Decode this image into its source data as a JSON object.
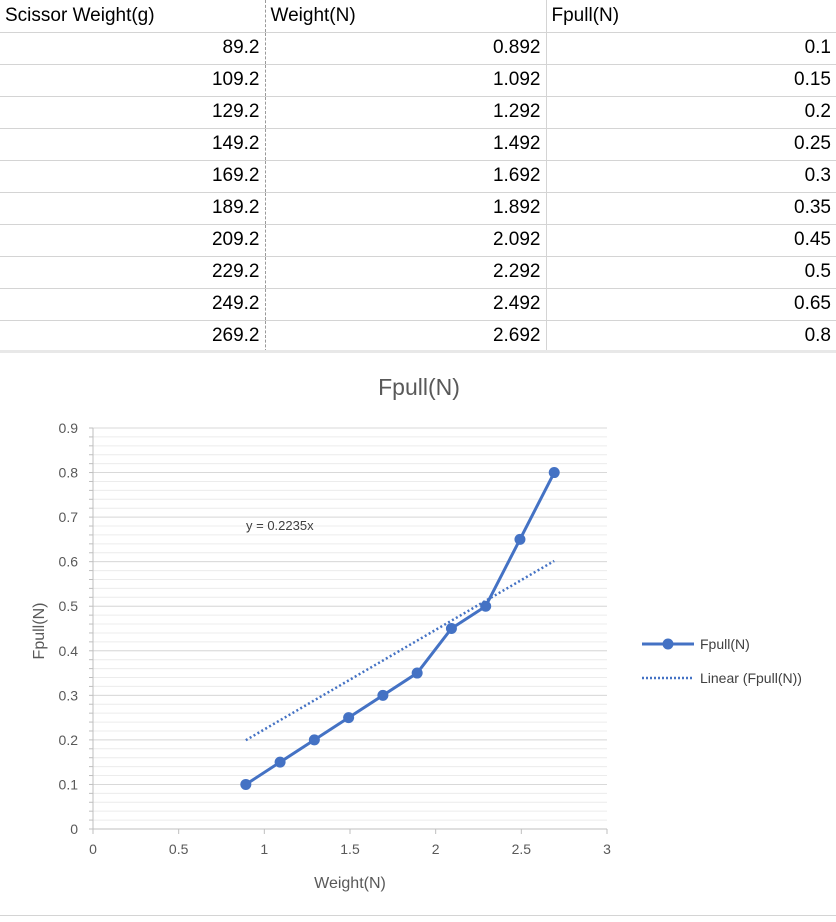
{
  "table": {
    "headers": [
      "Scissor Weight(g)",
      "Weight(N)",
      "Fpull(N)"
    ],
    "rows": [
      [
        "89.2",
        "0.892",
        "0.1"
      ],
      [
        "109.2",
        "1.092",
        "0.15"
      ],
      [
        "129.2",
        "1.292",
        "0.2"
      ],
      [
        "149.2",
        "1.492",
        "0.25"
      ],
      [
        "169.2",
        "1.692",
        "0.3"
      ],
      [
        "189.2",
        "1.892",
        "0.35"
      ],
      [
        "209.2",
        "2.092",
        "0.45"
      ],
      [
        "229.2",
        "2.292",
        "0.5"
      ],
      [
        "249.2",
        "2.492",
        "0.65"
      ],
      [
        "269.2",
        "2.692",
        "0.8"
      ]
    ]
  },
  "chart_data": {
    "type": "line",
    "title": "Fpull(N)",
    "xlabel": "Weight(N)",
    "ylabel": "Fpull(N)",
    "xlim": [
      0,
      3
    ],
    "ylim": [
      0,
      0.9
    ],
    "x_ticks": [
      "0",
      "0.5",
      "1",
      "1.5",
      "2",
      "2.5",
      "3"
    ],
    "y_ticks": [
      "0",
      "0.1",
      "0.2",
      "0.3",
      "0.4",
      "0.5",
      "0.6",
      "0.7",
      "0.8",
      "0.9"
    ],
    "x": [
      0.892,
      1.092,
      1.292,
      1.492,
      1.692,
      1.892,
      2.092,
      2.292,
      2.492,
      2.692
    ],
    "series": [
      {
        "name": "Fpull(N)",
        "values": [
          0.1,
          0.15,
          0.2,
          0.25,
          0.3,
          0.35,
          0.45,
          0.5,
          0.65,
          0.8
        ],
        "color": "#4472c4"
      }
    ],
    "trendline": {
      "name": "Linear (Fpull(N))",
      "slope": 0.2235,
      "equation": "y = 0.2235x",
      "x_range": [
        0.892,
        2.692
      ],
      "color": "#4472c4",
      "style": "dotted"
    },
    "legend_position": "right",
    "grid": true
  }
}
